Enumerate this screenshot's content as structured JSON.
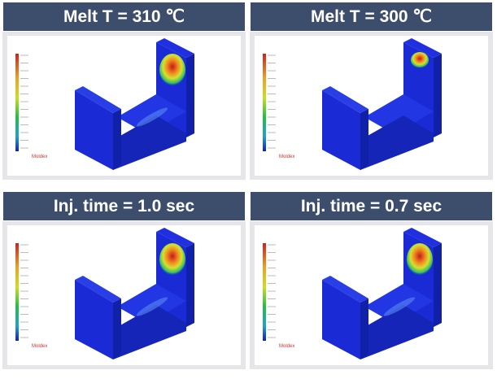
{
  "panels": [
    {
      "title": "Melt T = 310 ℃",
      "logo": "Moldex"
    },
    {
      "title": "Melt T = 300 ℃",
      "logo": "Moldex"
    },
    {
      "title": "Inj. time = 1.0 sec",
      "logo": "Moldex"
    },
    {
      "title": "Inj. time = 0.7 sec",
      "logo": "Moldex"
    }
  ]
}
